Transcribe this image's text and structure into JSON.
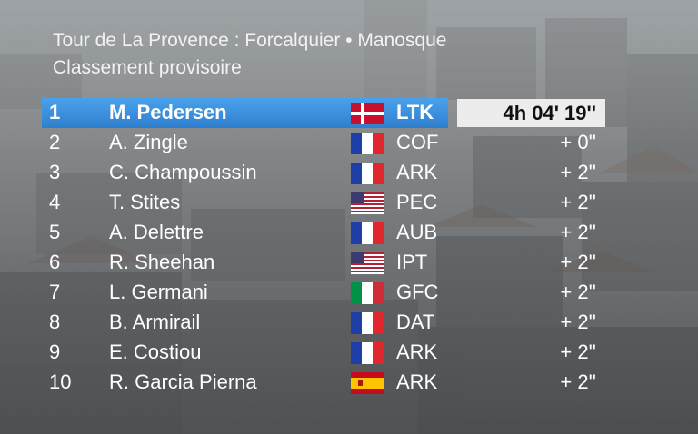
{
  "header": {
    "line1": "Tour de La Provence : Forcalquier •  Manosque",
    "line2": "Classement provisoire"
  },
  "standings": [
    {
      "pos": "1",
      "name": "M. Pedersen",
      "flag": "denmark-flag-icon",
      "team": "LTK",
      "time": "4h 04' 19''"
    },
    {
      "pos": "2",
      "name": "A. Zingle",
      "flag": "france-flag-icon",
      "team": "COF",
      "time": "+  0''"
    },
    {
      "pos": "3",
      "name": "C. Champoussin",
      "flag": "france-flag-icon",
      "team": "ARK",
      "time": "+  2''"
    },
    {
      "pos": "4",
      "name": "T. Stites",
      "flag": "usa-flag-icon",
      "team": "PEC",
      "time": "+  2''"
    },
    {
      "pos": "5",
      "name": "A. Delettre",
      "flag": "france-flag-icon",
      "team": "AUB",
      "time": "+  2''"
    },
    {
      "pos": "6",
      "name": "R. Sheehan",
      "flag": "usa-flag-icon",
      "team": "IPT",
      "time": "+  2''"
    },
    {
      "pos": "7",
      "name": "L. Germani",
      "flag": "italy-flag-icon",
      "team": "GFC",
      "time": "+  2''"
    },
    {
      "pos": "8",
      "name": "B. Armirail",
      "flag": "france-flag-icon",
      "team": "DAT",
      "time": "+  2''"
    },
    {
      "pos": "9",
      "name": "E. Costiou",
      "flag": "france-flag-icon",
      "team": "ARK",
      "time": "+  2''"
    },
    {
      "pos": "10",
      "name": "R. Garcia Pierna",
      "flag": "spain-flag-icon",
      "team": "ARK",
      "time": "+  2''"
    }
  ],
  "colors": {
    "leader_bar": "#3a8fe0",
    "leader_time_box": "#ececec",
    "text": "#ffffff"
  }
}
